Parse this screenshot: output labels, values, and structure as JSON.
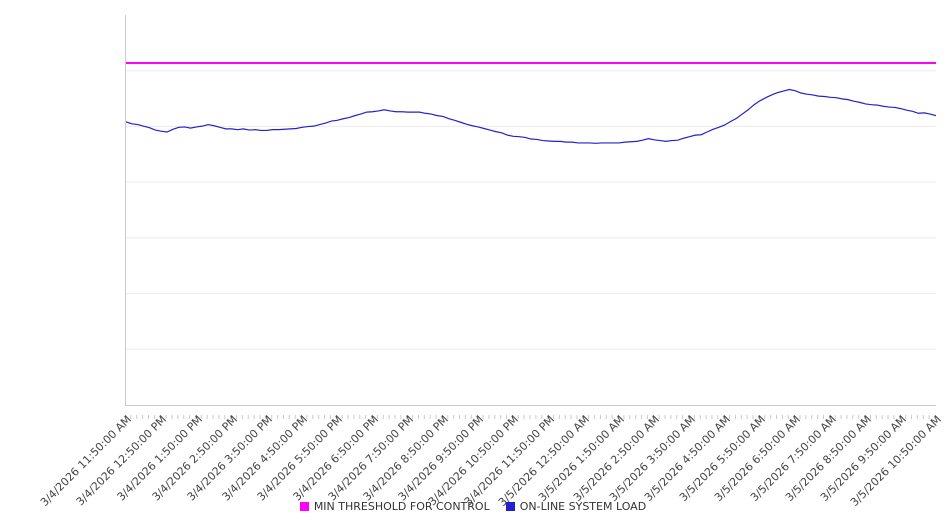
{
  "chart_data": {
    "type": "line",
    "title": "",
    "x_labels": [
      "3/4/2026 11:50:00 AM",
      "3/4/2026 12:50:00 PM",
      "3/4/2026 1:50:00 PM",
      "3/4/2026 2:50:00 PM",
      "3/4/2026 3:50:00 PM",
      "3/4/2026 4:50:00 PM",
      "3/4/2026 5:50:00 PM",
      "3/4/2026 6:50:00 PM",
      "3/4/2026 7:50:00 PM",
      "3/4/2026 8:50:00 PM",
      "3/4/2026 9:50:00 PM",
      "3/4/2026 10:50:00 PM",
      "3/4/2026 11:50:00 PM",
      "3/5/2026 12:50:00 AM",
      "3/5/2026 1:50:00 AM",
      "3/5/2026 2:50:00 AM",
      "3/5/2026 3:50:00 AM",
      "3/5/2026 4:50:00 AM",
      "3/5/2026 5:50:00 AM",
      "3/5/2026 6:50:00 AM",
      "3/5/2026 7:50:00 AM",
      "3/5/2026 8:50:00 AM",
      "3/5/2026 9:50:00 AM",
      "3/5/2026 10:50:00 AM"
    ],
    "points_per_label": 6,
    "minor_tick_interval_minutes": 10,
    "series": [
      {
        "name": "MIN THRESHOLD FOR CONTROL",
        "color": "#ff00ff",
        "type": "threshold",
        "value": 87.7
      },
      {
        "name": "ON-LINE SYSTEM LOAD",
        "color": "#2222cc",
        "type": "line",
        "values": [
          72.6,
          72.1,
          71.9,
          71.5,
          71.1,
          70.5,
          70.2,
          70.0,
          70.7,
          71.2,
          71.3,
          71.0,
          71.3,
          71.5,
          71.9,
          71.6,
          71.2,
          70.8,
          70.8,
          70.6,
          70.8,
          70.5,
          70.6,
          70.4,
          70.4,
          70.6,
          70.6,
          70.7,
          70.8,
          70.9,
          71.2,
          71.4,
          71.5,
          71.9,
          72.3,
          72.8,
          73.0,
          73.4,
          73.7,
          74.2,
          74.6,
          75.1,
          75.2,
          75.4,
          75.7,
          75.4,
          75.2,
          75.2,
          75.1,
          75.1,
          75.1,
          74.8,
          74.6,
          74.2,
          74.0,
          73.4,
          73.0,
          72.5,
          72.0,
          71.6,
          71.3,
          70.9,
          70.5,
          70.1,
          69.8,
          69.2,
          68.9,
          68.8,
          68.6,
          68.2,
          68.1,
          67.8,
          67.7,
          67.6,
          67.6,
          67.4,
          67.4,
          67.2,
          67.2,
          67.2,
          67.1,
          67.2,
          67.2,
          67.2,
          67.2,
          67.4,
          67.5,
          67.6,
          67.9,
          68.3,
          68.0,
          67.8,
          67.6,
          67.8,
          67.9,
          68.4,
          68.8,
          69.2,
          69.3,
          70.0,
          70.7,
          71.2,
          71.8,
          72.7,
          73.5,
          74.6,
          75.7,
          77.0,
          78.0,
          78.8,
          79.5,
          80.1,
          80.5,
          80.9,
          80.6,
          80.0,
          79.7,
          79.5,
          79.2,
          79.1,
          78.9,
          78.8,
          78.5,
          78.3,
          77.9,
          77.6,
          77.2,
          77.0,
          76.9,
          76.6,
          76.4,
          76.3,
          76.0,
          75.6,
          75.3,
          74.8,
          74.9,
          74.6,
          74.2
        ]
      }
    ],
    "ylim": [
      0,
      100
    ],
    "y_axis_labels_visible": false,
    "grid": "horizontal",
    "grid_divisions": 7,
    "legend_position": "bottom",
    "axis_color": "#cccccc",
    "grid_color": "#ececec",
    "tick_color": "#c9c9c9",
    "label_color": "#444444"
  }
}
